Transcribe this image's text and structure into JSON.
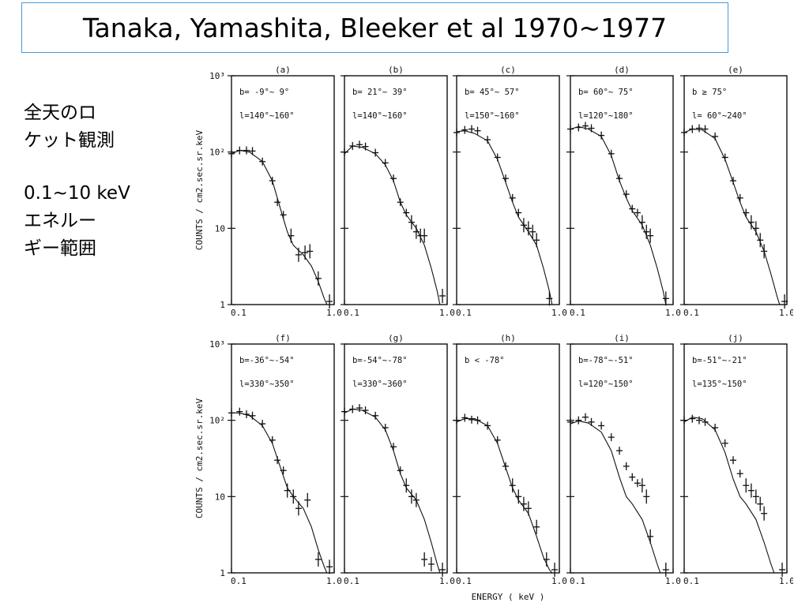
{
  "slide": {
    "title": "Tanaka, Yamashita, Bleeker et al 1970~1977",
    "side_lines_1": [
      "全天のロ",
      "ケット観測"
    ],
    "side_lines_2": [
      "0.1~10 keV",
      "エネルー",
      "ギー範囲"
    ]
  },
  "chart_data": {
    "type": "line",
    "xlabel": "ENERGY ( keV )",
    "ylabel": "COUNTS / cm2.sec.sr.keV",
    "xscale": "log",
    "yscale": "log",
    "xlim": [
      0.1,
      1.0
    ],
    "ylim": [
      1,
      1000
    ],
    "x_ticklabels": [
      "0.1",
      "1.0"
    ],
    "y_ticklabels": [
      "1",
      "10",
      "10²",
      "10³"
    ],
    "color": "#111111",
    "panels": [
      {
        "label": "(a)",
        "b_text": "b= -9°∼ 9°",
        "l_text": "l=140°∼160°",
        "model": [
          [
            0.1,
            95
          ],
          [
            0.12,
            105
          ],
          [
            0.15,
            100
          ],
          [
            0.2,
            75
          ],
          [
            0.25,
            42
          ],
          [
            0.3,
            18
          ],
          [
            0.35,
            9
          ],
          [
            0.4,
            6
          ],
          [
            0.5,
            4.5
          ],
          [
            0.6,
            3.2
          ],
          [
            0.7,
            2
          ],
          [
            0.8,
            1.2
          ],
          [
            0.85,
            1
          ]
        ],
        "points": [
          [
            0.1,
            95
          ],
          [
            0.12,
            105
          ],
          [
            0.14,
            105
          ],
          [
            0.16,
            103
          ],
          [
            0.2,
            75
          ],
          [
            0.25,
            42
          ],
          [
            0.28,
            22
          ],
          [
            0.32,
            15
          ],
          [
            0.38,
            8
          ],
          [
            0.45,
            4.5
          ],
          [
            0.52,
            4.8
          ],
          [
            0.58,
            5
          ],
          [
            0.7,
            2.2
          ],
          [
            0.9,
            1.1
          ]
        ]
      },
      {
        "label": "(b)",
        "b_text": "b= 21°∼ 39°",
        "l_text": "l=140°∼160°",
        "model": [
          [
            0.1,
            95
          ],
          [
            0.12,
            120
          ],
          [
            0.15,
            115
          ],
          [
            0.2,
            95
          ],
          [
            0.25,
            68
          ],
          [
            0.3,
            42
          ],
          [
            0.35,
            22
          ],
          [
            0.4,
            15
          ],
          [
            0.5,
            10
          ],
          [
            0.6,
            6
          ],
          [
            0.7,
            3
          ],
          [
            0.8,
            1.5
          ],
          [
            0.85,
            1
          ]
        ],
        "points": [
          [
            0.1,
            100
          ],
          [
            0.12,
            120
          ],
          [
            0.14,
            125
          ],
          [
            0.16,
            118
          ],
          [
            0.2,
            98
          ],
          [
            0.25,
            72
          ],
          [
            0.3,
            45
          ],
          [
            0.35,
            22
          ],
          [
            0.4,
            16
          ],
          [
            0.45,
            12
          ],
          [
            0.5,
            9
          ],
          [
            0.55,
            8
          ],
          [
            0.6,
            8
          ],
          [
            0.9,
            1.3
          ]
        ]
      },
      {
        "label": "(c)",
        "b_text": "b= 45°∼ 57°",
        "l_text": "l=150°∼160°",
        "model": [
          [
            0.1,
            185
          ],
          [
            0.12,
            190
          ],
          [
            0.15,
            175
          ],
          [
            0.2,
            140
          ],
          [
            0.25,
            80
          ],
          [
            0.3,
            40
          ],
          [
            0.35,
            22
          ],
          [
            0.4,
            14
          ],
          [
            0.5,
            9
          ],
          [
            0.6,
            6
          ],
          [
            0.7,
            3
          ],
          [
            0.8,
            1.5
          ],
          [
            0.85,
            1
          ]
        ],
        "points": [
          [
            0.1,
            180
          ],
          [
            0.12,
            195
          ],
          [
            0.14,
            200
          ],
          [
            0.16,
            190
          ],
          [
            0.2,
            145
          ],
          [
            0.25,
            85
          ],
          [
            0.3,
            45
          ],
          [
            0.35,
            25
          ],
          [
            0.4,
            16
          ],
          [
            0.45,
            11
          ],
          [
            0.5,
            10
          ],
          [
            0.55,
            9
          ],
          [
            0.6,
            7
          ],
          [
            0.8,
            1.2
          ]
        ]
      },
      {
        "label": "(d)",
        "b_text": "b= 60°∼ 75°",
        "l_text": "l=120°∼180°",
        "model": [
          [
            0.1,
            200
          ],
          [
            0.12,
            215
          ],
          [
            0.15,
            200
          ],
          [
            0.2,
            160
          ],
          [
            0.25,
            90
          ],
          [
            0.3,
            42
          ],
          [
            0.35,
            25
          ],
          [
            0.4,
            17
          ],
          [
            0.5,
            11
          ],
          [
            0.6,
            6
          ],
          [
            0.7,
            3
          ],
          [
            0.8,
            1.5
          ],
          [
            0.85,
            1
          ]
        ],
        "points": [
          [
            0.1,
            200
          ],
          [
            0.12,
            210
          ],
          [
            0.14,
            220
          ],
          [
            0.16,
            205
          ],
          [
            0.2,
            165
          ],
          [
            0.25,
            95
          ],
          [
            0.3,
            45
          ],
          [
            0.35,
            28
          ],
          [
            0.4,
            18
          ],
          [
            0.45,
            16
          ],
          [
            0.5,
            12
          ],
          [
            0.55,
            9
          ],
          [
            0.6,
            8
          ],
          [
            0.85,
            1.2
          ]
        ]
      },
      {
        "label": "(e)",
        "b_text": "b ≥ 75°",
        "l_text": "l= 60°∼240°",
        "model": [
          [
            0.1,
            180
          ],
          [
            0.12,
            200
          ],
          [
            0.15,
            195
          ],
          [
            0.2,
            150
          ],
          [
            0.25,
            80
          ],
          [
            0.3,
            40
          ],
          [
            0.35,
            22
          ],
          [
            0.4,
            14
          ],
          [
            0.5,
            9
          ],
          [
            0.6,
            5
          ],
          [
            0.7,
            2.5
          ],
          [
            0.8,
            1.3
          ],
          [
            0.85,
            1
          ]
        ],
        "points": [
          [
            0.1,
            180
          ],
          [
            0.12,
            200
          ],
          [
            0.14,
            205
          ],
          [
            0.16,
            200
          ],
          [
            0.2,
            160
          ],
          [
            0.25,
            85
          ],
          [
            0.3,
            42
          ],
          [
            0.35,
            25
          ],
          [
            0.4,
            16
          ],
          [
            0.45,
            12
          ],
          [
            0.5,
            10
          ],
          [
            0.55,
            7
          ],
          [
            0.6,
            5
          ],
          [
            0.95,
            1.1
          ]
        ]
      },
      {
        "label": "(f)",
        "b_text": "b=-36°∼-54°",
        "l_text": "l=330°∼350°",
        "model": [
          [
            0.1,
            125
          ],
          [
            0.12,
            125
          ],
          [
            0.15,
            115
          ],
          [
            0.2,
            85
          ],
          [
            0.25,
            50
          ],
          [
            0.3,
            24
          ],
          [
            0.35,
            13
          ],
          [
            0.4,
            10
          ],
          [
            0.5,
            7
          ],
          [
            0.6,
            4
          ],
          [
            0.7,
            2
          ],
          [
            0.8,
            1.2
          ],
          [
            0.85,
            1
          ]
        ],
        "points": [
          [
            0.1,
            125
          ],
          [
            0.12,
            130
          ],
          [
            0.14,
            120
          ],
          [
            0.16,
            115
          ],
          [
            0.2,
            90
          ],
          [
            0.25,
            55
          ],
          [
            0.28,
            30
          ],
          [
            0.32,
            22
          ],
          [
            0.35,
            12
          ],
          [
            0.4,
            10
          ],
          [
            0.45,
            7
          ],
          [
            0.55,
            9
          ],
          [
            0.7,
            1.5
          ],
          [
            0.9,
            1.2
          ]
        ]
      },
      {
        "label": "(g)",
        "b_text": "b=-54°∼-78°",
        "l_text": "l=330°∼360°",
        "model": [
          [
            0.1,
            125
          ],
          [
            0.12,
            140
          ],
          [
            0.15,
            135
          ],
          [
            0.2,
            110
          ],
          [
            0.25,
            75
          ],
          [
            0.3,
            40
          ],
          [
            0.35,
            20
          ],
          [
            0.4,
            13
          ],
          [
            0.5,
            9
          ],
          [
            0.6,
            5
          ],
          [
            0.7,
            2.5
          ],
          [
            0.8,
            1.3
          ],
          [
            0.85,
            1
          ]
        ],
        "points": [
          [
            0.1,
            130
          ],
          [
            0.12,
            140
          ],
          [
            0.14,
            145
          ],
          [
            0.16,
            135
          ],
          [
            0.2,
            115
          ],
          [
            0.25,
            80
          ],
          [
            0.3,
            45
          ],
          [
            0.35,
            22
          ],
          [
            0.4,
            14
          ],
          [
            0.45,
            10
          ],
          [
            0.5,
            9
          ],
          [
            0.6,
            1.5
          ],
          [
            0.7,
            1.3
          ],
          [
            0.9,
            1.1
          ]
        ]
      },
      {
        "label": "(h)",
        "b_text": "b < -78°",
        "l_text": "",
        "model": [
          [
            0.1,
            95
          ],
          [
            0.12,
            105
          ],
          [
            0.15,
            105
          ],
          [
            0.2,
            85
          ],
          [
            0.25,
            50
          ],
          [
            0.3,
            24
          ],
          [
            0.35,
            13
          ],
          [
            0.4,
            9
          ],
          [
            0.5,
            6
          ],
          [
            0.6,
            3
          ],
          [
            0.7,
            1.6
          ],
          [
            0.8,
            1.1
          ],
          [
            0.85,
            1
          ]
        ],
        "points": [
          [
            0.1,
            100
          ],
          [
            0.12,
            108
          ],
          [
            0.14,
            102
          ],
          [
            0.16,
            100
          ],
          [
            0.2,
            85
          ],
          [
            0.25,
            55
          ],
          [
            0.3,
            25
          ],
          [
            0.35,
            14
          ],
          [
            0.4,
            10
          ],
          [
            0.45,
            8
          ],
          [
            0.5,
            7
          ],
          [
            0.6,
            4
          ],
          [
            0.75,
            1.5
          ],
          [
            0.9,
            1.1
          ]
        ]
      },
      {
        "label": "(i)",
        "b_text": "b=-78°∼-51°",
        "l_text": "l=120°∼150°",
        "model": [
          [
            0.1,
            90
          ],
          [
            0.12,
            98
          ],
          [
            0.15,
            92
          ],
          [
            0.2,
            70
          ],
          [
            0.25,
            40
          ],
          [
            0.3,
            18
          ],
          [
            0.35,
            10
          ],
          [
            0.4,
            8
          ],
          [
            0.5,
            5
          ],
          [
            0.6,
            2.5
          ],
          [
            0.7,
            1.3
          ],
          [
            0.75,
            1
          ]
        ],
        "points": [
          [
            0.1,
            95
          ],
          [
            0.12,
            100
          ],
          [
            0.14,
            110
          ],
          [
            0.16,
            95
          ],
          [
            0.2,
            85
          ],
          [
            0.25,
            60
          ],
          [
            0.3,
            40
          ],
          [
            0.35,
            25
          ],
          [
            0.4,
            18
          ],
          [
            0.45,
            15
          ],
          [
            0.5,
            14
          ],
          [
            0.55,
            10
          ],
          [
            0.6,
            3
          ],
          [
            0.85,
            1.1
          ]
        ]
      },
      {
        "label": "(j)",
        "b_text": "b=-51°∼-21°",
        "l_text": "l=135°∼150°",
        "model": [
          [
            0.1,
            95
          ],
          [
            0.12,
            110
          ],
          [
            0.15,
            105
          ],
          [
            0.2,
            75
          ],
          [
            0.25,
            38
          ],
          [
            0.3,
            17
          ],
          [
            0.35,
            10
          ],
          [
            0.4,
            8
          ],
          [
            0.5,
            5
          ],
          [
            0.6,
            2.5
          ],
          [
            0.7,
            1.3
          ],
          [
            0.75,
            1
          ]
        ],
        "points": [
          [
            0.1,
            100
          ],
          [
            0.12,
            105
          ],
          [
            0.14,
            100
          ],
          [
            0.16,
            95
          ],
          [
            0.2,
            80
          ],
          [
            0.25,
            50
          ],
          [
            0.3,
            30
          ],
          [
            0.35,
            20
          ],
          [
            0.4,
            14
          ],
          [
            0.45,
            12
          ],
          [
            0.5,
            10
          ],
          [
            0.55,
            8
          ],
          [
            0.6,
            6
          ],
          [
            0.9,
            1.1
          ]
        ]
      }
    ]
  }
}
